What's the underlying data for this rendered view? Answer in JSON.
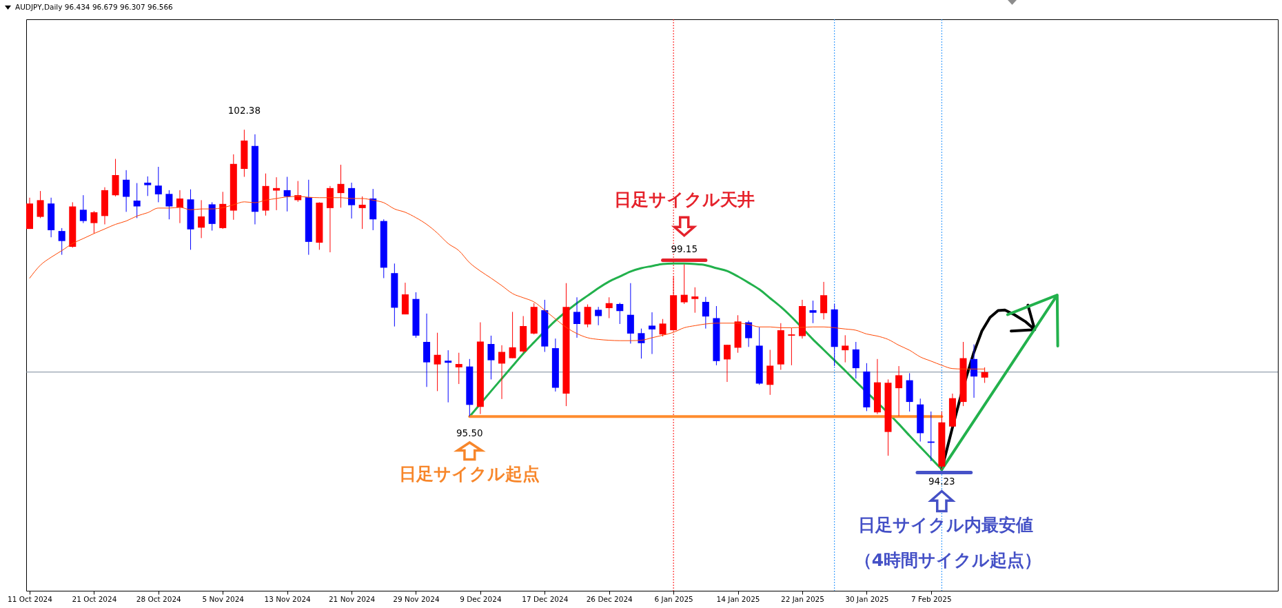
{
  "chart_data": {
    "type": "candlestick",
    "title": "AUDJPY,Daily 96.434 96.679 96.307 96.566",
    "categories": [
      "11 Oct 2024",
      null,
      null,
      null,
      null,
      null,
      "21 Oct 2024",
      null,
      null,
      null,
      null,
      null,
      "28 Oct 2024",
      null,
      null,
      null,
      null,
      null,
      "5 Nov 2024",
      null,
      null,
      null,
      null,
      null,
      "13 Nov 2024",
      null,
      null,
      null,
      null,
      null,
      "21 Nov 2024",
      null,
      null,
      null,
      null,
      null,
      "29 Nov 2024",
      null,
      null,
      null,
      null,
      null,
      "9 Dec 2024",
      null,
      null,
      null,
      null,
      null,
      "17 Dec 2024",
      null,
      null,
      null,
      null,
      null,
      "26 Dec 2024",
      null,
      null,
      null,
      null,
      null,
      "6 Jan 2025",
      null,
      null,
      null,
      null,
      null,
      "14 Jan 2025",
      null,
      null,
      null,
      null,
      null,
      "22 Jan 2025",
      null,
      null,
      null,
      null,
      null,
      "30 Jan 2025",
      null,
      null,
      null,
      null,
      null,
      "7 Feb 2025",
      null,
      null,
      null,
      null,
      null
    ],
    "ohlc": [
      [
        100.0,
        100.75,
        100.0,
        100.61
      ],
      [
        100.29,
        100.91,
        100.26,
        100.69
      ],
      [
        100.61,
        100.75,
        99.8,
        99.97
      ],
      [
        99.95,
        100.02,
        99.38,
        99.71
      ],
      [
        99.57,
        100.64,
        99.55,
        100.54
      ],
      [
        100.46,
        100.81,
        100.14,
        100.19
      ],
      [
        100.14,
        100.43,
        99.89,
        100.4
      ],
      [
        100.31,
        101.0,
        100.11,
        100.93
      ],
      [
        100.81,
        101.68,
        100.78,
        101.29
      ],
      [
        101.18,
        101.41,
        100.41,
        100.77
      ],
      [
        100.68,
        101.1,
        100.26,
        100.54
      ],
      [
        101.11,
        101.26,
        100.79,
        101.05
      ],
      [
        101.04,
        101.49,
        100.64,
        100.83
      ],
      [
        100.84,
        100.93,
        100.23,
        100.54
      ],
      [
        100.51,
        100.93,
        100.14,
        100.73
      ],
      [
        100.71,
        100.95,
        99.5,
        99.99
      ],
      [
        100.03,
        100.69,
        99.78,
        100.3
      ],
      [
        100.59,
        100.64,
        99.96,
        100.12
      ],
      [
        100.02,
        100.89,
        100.0,
        100.6
      ],
      [
        100.44,
        101.79,
        100.22,
        101.56
      ],
      [
        101.44,
        102.38,
        101.25,
        102.12
      ],
      [
        101.99,
        102.27,
        100.11,
        100.41
      ],
      [
        100.44,
        101.33,
        100.32,
        101.03
      ],
      [
        100.92,
        101.24,
        100.45,
        100.98
      ],
      [
        100.93,
        101.25,
        100.42,
        100.78
      ],
      [
        100.69,
        101.15,
        100.65,
        100.81
      ],
      [
        100.76,
        101.18,
        99.38,
        99.69
      ],
      [
        99.67,
        100.64,
        99.5,
        100.63
      ],
      [
        100.5,
        101.03,
        99.44,
        100.98
      ],
      [
        100.86,
        101.54,
        100.51,
        101.08
      ],
      [
        100.98,
        101.11,
        100.25,
        100.57
      ],
      [
        100.5,
        100.78,
        100.0,
        100.58
      ],
      [
        100.73,
        100.96,
        99.97,
        100.23
      ],
      [
        100.19,
        100.23,
        98.82,
        99.07
      ],
      [
        98.94,
        99.17,
        97.66,
        98.11
      ],
      [
        97.95,
        98.71,
        97.95,
        98.43
      ],
      [
        98.32,
        98.48,
        97.39,
        97.44
      ],
      [
        97.29,
        97.97,
        96.21,
        96.8
      ],
      [
        96.75,
        97.51,
        96.11,
        96.98
      ],
      [
        96.84,
        97.09,
        95.84,
        96.79
      ],
      [
        96.68,
        97.03,
        96.28,
        96.76
      ],
      [
        96.7,
        96.88,
        95.5,
        95.78
      ],
      [
        95.73,
        97.76,
        95.56,
        97.3
      ],
      [
        97.24,
        97.44,
        96.39,
        96.85
      ],
      [
        96.77,
        97.21,
        95.92,
        97.05
      ],
      [
        96.9,
        98.01,
        96.9,
        97.16
      ],
      [
        97.06,
        97.91,
        97.02,
        97.67
      ],
      [
        97.49,
        98.22,
        97.47,
        98.13
      ],
      [
        98.05,
        98.3,
        97.05,
        97.18
      ],
      [
        97.14,
        97.37,
        96.1,
        96.19
      ],
      [
        96.05,
        98.7,
        95.75,
        98.13
      ],
      [
        98.01,
        98.36,
        97.39,
        97.72
      ],
      [
        97.71,
        98.19,
        97.64,
        98.13
      ],
      [
        98.06,
        98.13,
        97.69,
        97.91
      ],
      [
        98.1,
        98.36,
        97.86,
        98.22
      ],
      [
        98.2,
        98.23,
        97.72,
        98.03
      ],
      [
        97.94,
        98.7,
        97.25,
        97.49
      ],
      [
        97.5,
        97.61,
        96.89,
        97.26
      ],
      [
        97.68,
        98.0,
        97.0,
        97.59
      ],
      [
        97.47,
        97.84,
        97.42,
        97.73
      ],
      [
        97.57,
        98.86,
        97.56,
        98.41
      ],
      [
        98.24,
        99.15,
        98.2,
        98.42
      ],
      [
        98.32,
        98.6,
        97.99,
        98.38
      ],
      [
        98.25,
        98.37,
        97.61,
        97.9
      ],
      [
        97.86,
        98.15,
        96.73,
        96.83
      ],
      [
        96.87,
        97.22,
        96.33,
        97.22
      ],
      [
        97.15,
        97.93,
        97.03,
        97.78
      ],
      [
        97.76,
        97.8,
        97.17,
        97.38
      ],
      [
        97.2,
        97.64,
        96.26,
        96.29
      ],
      [
        96.26,
        97.1,
        96.02,
        96.72
      ],
      [
        96.75,
        97.74,
        96.62,
        97.57
      ],
      [
        97.44,
        97.62,
        96.73,
        97.47
      ],
      [
        97.43,
        98.3,
        97.37,
        98.15
      ],
      [
        98.05,
        98.28,
        97.74,
        97.99
      ],
      [
        97.98,
        98.73,
        97.83,
        98.41
      ],
      [
        98.07,
        98.2,
        96.71,
        97.17
      ],
      [
        97.09,
        97.45,
        96.8,
        97.2
      ],
      [
        97.11,
        97.29,
        96.41,
        96.66
      ],
      [
        96.58,
        96.78,
        95.63,
        95.72
      ],
      [
        95.6,
        96.88,
        95.56,
        96.32
      ],
      [
        95.13,
        96.39,
        94.56,
        96.31
      ],
      [
        96.18,
        96.71,
        95.51,
        96.49
      ],
      [
        96.37,
        96.54,
        95.62,
        95.85
      ],
      [
        95.79,
        95.93,
        94.9,
        95.1
      ],
      [
        94.9,
        95.62,
        94.43,
        94.87
      ],
      [
        94.3,
        95.62,
        94.23,
        95.36
      ],
      [
        95.26,
        96.05,
        95.24,
        95.94
      ],
      [
        95.85,
        97.29,
        95.75,
        96.9
      ],
      [
        96.88,
        97.23,
        95.95,
        96.46
      ],
      [
        96.434,
        96.679,
        96.307,
        96.566
      ]
    ],
    "colors": [
      "#ff0000",
      "#ff0000",
      "#0000ff",
      "#0000ff",
      "#ff0000",
      "#0000ff",
      "#ff0000",
      "#ff0000",
      "#ff0000",
      "#0000ff",
      "#0000ff",
      "#0000ff",
      "#0000ff",
      "#0000ff",
      "#ff0000",
      "#0000ff",
      "#ff0000",
      "#0000ff",
      "#ff0000",
      "#ff0000",
      "#ff0000",
      "#0000ff",
      "#ff0000",
      "#ff0000",
      "#0000ff",
      "#ff0000",
      "#0000ff",
      "#ff0000",
      "#ff0000",
      "#ff0000",
      "#0000ff",
      "#ff0000",
      "#0000ff",
      "#0000ff",
      "#0000ff",
      "#ff0000",
      "#0000ff",
      "#0000ff",
      "#ff0000",
      "#0000ff",
      "#ff0000",
      "#0000ff",
      "#ff0000",
      "#0000ff",
      "#ff0000",
      "#ff0000",
      "#ff0000",
      "#ff0000",
      "#0000ff",
      "#0000ff",
      "#ff0000",
      "#0000ff",
      "#ff0000",
      "#0000ff",
      "#ff0000",
      "#0000ff",
      "#0000ff",
      "#0000ff",
      "#0000ff",
      "#ff0000",
      "#ff0000",
      "#ff0000",
      "#ff0000",
      "#0000ff",
      "#0000ff",
      "#ff0000",
      "#ff0000",
      "#0000ff",
      "#0000ff",
      "#ff0000",
      "#ff0000",
      "#ff0000",
      "#ff0000",
      "#0000ff",
      "#ff0000",
      "#0000ff",
      "#ff0000",
      "#0000ff",
      "#0000ff",
      "#ff0000",
      "#ff0000",
      "#ff0000",
      "#0000ff",
      "#0000ff",
      "#0000ff",
      "#ff0000",
      "#ff0000",
      "#ff0000",
      "#0000ff",
      "#ff0000"
    ],
    "series": [
      {
        "type": "line",
        "color": "#ff4500",
        "values": [
          98.82,
          99.13,
          99.32,
          99.48,
          99.65,
          99.77,
          99.89,
          100.0,
          100.11,
          100.19,
          100.31,
          100.39,
          100.5,
          100.5,
          100.52,
          100.46,
          100.48,
          100.48,
          100.51,
          100.58,
          100.65,
          100.63,
          100.69,
          100.73,
          100.77,
          100.78,
          100.76,
          100.75,
          100.75,
          100.75,
          100.73,
          100.73,
          100.69,
          100.63,
          100.48,
          100.4,
          100.27,
          100.11,
          99.9,
          99.65,
          99.48,
          99.19,
          98.99,
          98.82,
          98.64,
          98.45,
          98.35,
          98.25,
          98.05,
          97.84,
          97.64,
          97.49,
          97.39,
          97.35,
          97.33,
          97.32,
          97.32,
          97.33,
          97.39,
          97.45,
          97.52,
          97.63,
          97.68,
          97.72,
          97.74,
          97.74,
          97.74,
          97.71,
          97.65,
          97.65,
          97.63,
          97.63,
          97.64,
          97.65,
          97.65,
          97.63,
          97.6,
          97.57,
          97.48,
          97.43,
          97.35,
          97.21,
          97.09,
          96.93,
          96.83,
          96.73,
          96.65,
          96.64,
          96.64,
          96.64
        ]
      },
      {
        "type": "line",
        "color": "#22b14c",
        "values": [
          null,
          null,
          null,
          null,
          null,
          null,
          null,
          null,
          null,
          null,
          null,
          null,
          null,
          null,
          null,
          null,
          null,
          null,
          null,
          null,
          null,
          null,
          null,
          null,
          null,
          null,
          null,
          null,
          null,
          null,
          null,
          null,
          null,
          null,
          null,
          null,
          null,
          null,
          null,
          null,
          null,
          95.5,
          null,
          96.11,
          96.41,
          96.71,
          97.01,
          97.28,
          null,
          97.8,
          null,
          98.22,
          98.4,
          98.58,
          98.74,
          98.86,
          98.98,
          99.06,
          99.11,
          99.16,
          99.17,
          99.17,
          99.16,
          99.13,
          99.06,
          98.99,
          98.86,
          98.71,
          98.55,
          98.34,
          98.13,
          97.89,
          null,
          97.35,
          97.1,
          96.85,
          96.6,
          96.34,
          null,
          null,
          null,
          95.32,
          95.04,
          94.77,
          94.5,
          94.23,
          null,
          null,
          null,
          null
        ]
      },
      {
        "type": "line",
        "color": "#ff8c2e",
        "values": [
          null,
          null,
          null,
          null,
          null,
          null,
          null,
          null,
          null,
          null,
          null,
          null,
          null,
          null,
          null,
          null,
          null,
          null,
          null,
          null,
          null,
          null,
          null,
          null,
          null,
          null,
          null,
          null,
          null,
          null,
          null,
          null,
          null,
          null,
          null,
          null,
          null,
          null,
          null,
          null,
          null,
          95.5,
          95.5,
          95.5,
          95.5,
          95.5,
          95.5,
          95.5,
          95.5,
          95.5,
          95.5,
          95.5,
          95.5,
          95.5,
          95.5,
          95.5,
          95.5,
          95.5,
          95.5,
          95.5,
          95.5,
          95.5,
          95.5,
          95.5,
          95.5,
          95.5,
          95.5,
          95.5,
          95.5,
          95.5,
          95.5,
          95.5,
          95.5,
          95.5,
          95.5,
          95.5,
          95.5,
          95.5,
          95.5,
          95.5,
          null,
          95.5,
          95.5,
          null,
          95.5,
          95.5,
          null,
          null,
          null,
          null
        ]
      },
      {
        "type": "line",
        "color": "#e3202a",
        "values": [
          null,
          null,
          null,
          null,
          null,
          null,
          null,
          null,
          null,
          null,
          null,
          null,
          null,
          null,
          null,
          null,
          null,
          null,
          null,
          null,
          null,
          null,
          null,
          null,
          null,
          null,
          null,
          null,
          null,
          null,
          null,
          null,
          null,
          null,
          null,
          null,
          null,
          null,
          null,
          null,
          null,
          null,
          null,
          null,
          null,
          null,
          null,
          null,
          null,
          null,
          null,
          null,
          null,
          null,
          null,
          null,
          null,
          null,
          null,
          99.25,
          99.25,
          99.25,
          99.25,
          99.25,
          null,
          null,
          null,
          null,
          null,
          null,
          null,
          null,
          null,
          null,
          null,
          null,
          null,
          null,
          null,
          null,
          null,
          null,
          null,
          null,
          null,
          null,
          null,
          null,
          null,
          null
        ]
      }
    ],
    "ref_lines": [
      {
        "axis": "y",
        "value": 96.566,
        "color": "#778899",
        "line_style": "solid"
      },
      {
        "axis": "x",
        "value": "6 Jan 2025",
        "color": "#ff0000",
        "line_style": "dotted"
      }
    ],
    "annotations": [
      {
        "text": "102.38",
        "y": 102.38
      },
      {
        "text": "99.15",
        "y": 99.15
      },
      "日足サイクル天井",
      {
        "text": "95.50",
        "y": 95.5
      },
      "日足サイクル起点",
      {
        "text": "94.23",
        "y": 94.23
      },
      "日足サイクル内最安値",
      "（4時間サイクル起点）"
    ]
  }
}
